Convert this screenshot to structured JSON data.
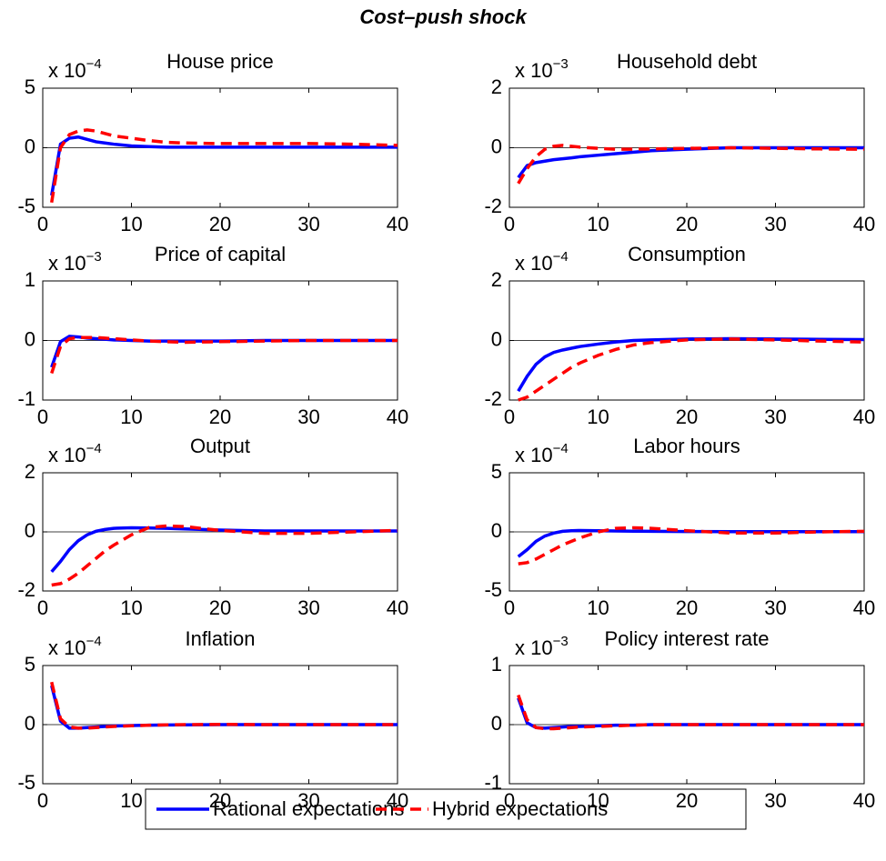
{
  "title": "Cost–push shock",
  "chart_data": [
    {
      "type": "line",
      "title": "House price",
      "y_scale": "x 10",
      "y_exponent": "−4",
      "x": [
        1,
        2,
        3,
        4,
        5,
        6,
        7,
        8,
        10,
        12,
        14,
        16,
        20,
        25,
        30,
        35,
        40
      ],
      "xlim": [
        0,
        40
      ],
      "xticks": [
        0,
        10,
        20,
        30,
        40
      ],
      "ylim": [
        -5,
        5
      ],
      "yticks": [
        -5,
        0,
        5
      ],
      "series": [
        {
          "name": "Rational expectations",
          "color": "#0000ff",
          "line_style": "solid",
          "values": [
            -4,
            0.3,
            0.8,
            0.9,
            0.7,
            0.5,
            0.4,
            0.3,
            0.15,
            0.1,
            0.05,
            0.05,
            0.05,
            0.05,
            0.05,
            0.05,
            0.05
          ]
        },
        {
          "name": "Hybrid expectations",
          "color": "#ff0000",
          "line_style": "dashed",
          "values": [
            -4.6,
            0.0,
            1.1,
            1.4,
            1.5,
            1.4,
            1.2,
            1.0,
            0.8,
            0.6,
            0.45,
            0.4,
            0.35,
            0.35,
            0.35,
            0.3,
            0.2
          ]
        }
      ]
    },
    {
      "type": "line",
      "title": "Household debt",
      "y_scale": "x 10",
      "y_exponent": "−3",
      "x": [
        1,
        2,
        3,
        4,
        5,
        6,
        7,
        8,
        10,
        12,
        14,
        16,
        20,
        25,
        30,
        35,
        40
      ],
      "xlim": [
        0,
        40
      ],
      "xticks": [
        0,
        10,
        20,
        30,
        40
      ],
      "ylim": [
        -2,
        2
      ],
      "yticks": [
        -2,
        0,
        2
      ],
      "series": [
        {
          "name": "Rational expectations",
          "color": "#0000ff",
          "line_style": "solid",
          "values": [
            -1.0,
            -0.6,
            -0.5,
            -0.45,
            -0.4,
            -0.37,
            -0.34,
            -0.3,
            -0.25,
            -0.2,
            -0.15,
            -0.1,
            -0.05,
            0,
            0,
            0,
            0
          ]
        },
        {
          "name": "Hybrid expectations",
          "color": "#ff0000",
          "line_style": "dashed",
          "values": [
            -1.2,
            -0.7,
            -0.3,
            -0.05,
            0.05,
            0.08,
            0.05,
            0.02,
            -0.02,
            -0.05,
            -0.05,
            -0.04,
            -0.02,
            0,
            -0.02,
            -0.04,
            -0.05
          ]
        }
      ]
    },
    {
      "type": "line",
      "title": "Price of capital",
      "y_scale": "x 10",
      "y_exponent": "−3",
      "x": [
        1,
        2,
        3,
        4,
        5,
        6,
        7,
        8,
        10,
        12,
        14,
        16,
        20,
        25,
        30,
        35,
        40
      ],
      "xlim": [
        0,
        40
      ],
      "xticks": [
        0,
        10,
        20,
        30,
        40
      ],
      "ylim": [
        -1,
        1
      ],
      "yticks": [
        -1,
        0,
        1
      ],
      "series": [
        {
          "name": "Rational expectations",
          "color": "#0000ff",
          "line_style": "solid",
          "values": [
            -0.45,
            -0.02,
            0.07,
            0.06,
            0.04,
            0.03,
            0.02,
            0.01,
            0,
            -0.01,
            -0.01,
            -0.01,
            -0.01,
            0,
            0,
            0,
            0
          ]
        },
        {
          "name": "Hybrid expectations",
          "color": "#ff0000",
          "line_style": "dashed",
          "values": [
            -0.55,
            -0.1,
            0.03,
            0.05,
            0.05,
            0.05,
            0.04,
            0.03,
            0.01,
            -0.01,
            -0.02,
            -0.03,
            -0.02,
            -0.01,
            0,
            0,
            0
          ]
        }
      ]
    },
    {
      "type": "line",
      "title": "Consumption",
      "y_scale": "x 10",
      "y_exponent": "−4",
      "x": [
        1,
        2,
        3,
        4,
        5,
        6,
        7,
        8,
        10,
        12,
        14,
        16,
        20,
        25,
        30,
        35,
        40
      ],
      "xlim": [
        0,
        40
      ],
      "xticks": [
        0,
        10,
        20,
        30,
        40
      ],
      "ylim": [
        -2,
        2
      ],
      "yticks": [
        -2,
        0,
        2
      ],
      "series": [
        {
          "name": "Rational expectations",
          "color": "#0000ff",
          "line_style": "solid",
          "values": [
            -1.7,
            -1.2,
            -0.8,
            -0.55,
            -0.4,
            -0.32,
            -0.26,
            -0.2,
            -0.12,
            -0.05,
            0,
            0.02,
            0.05,
            0.06,
            0.05,
            0.04,
            0.03
          ]
        },
        {
          "name": "Hybrid expectations",
          "color": "#ff0000",
          "line_style": "dashed",
          "values": [
            -2.0,
            -1.9,
            -1.7,
            -1.5,
            -1.3,
            -1.1,
            -0.9,
            -0.75,
            -0.5,
            -0.3,
            -0.15,
            -0.07,
            0.02,
            0.05,
            0.02,
            -0.02,
            -0.05
          ]
        }
      ]
    },
    {
      "type": "line",
      "title": "Output",
      "y_scale": "x 10",
      "y_exponent": "−4",
      "x": [
        1,
        2,
        3,
        4,
        5,
        6,
        7,
        8,
        10,
        12,
        14,
        16,
        20,
        25,
        30,
        35,
        40
      ],
      "xlim": [
        0,
        40
      ],
      "xticks": [
        0,
        10,
        20,
        30,
        40
      ],
      "ylim": [
        -2,
        2
      ],
      "yticks": [
        -2,
        0,
        2
      ],
      "series": [
        {
          "name": "Rational expectations",
          "color": "#0000ff",
          "line_style": "solid",
          "values": [
            -1.35,
            -1.0,
            -0.6,
            -0.3,
            -0.1,
            0.02,
            0.08,
            0.12,
            0.14,
            0.13,
            0.12,
            0.1,
            0.06,
            0.03,
            0.03,
            0.03,
            0.03
          ]
        },
        {
          "name": "Hybrid expectations",
          "color": "#ff0000",
          "line_style": "dashed",
          "values": [
            -1.8,
            -1.75,
            -1.6,
            -1.4,
            -1.15,
            -0.9,
            -0.65,
            -0.45,
            -0.1,
            0.15,
            0.2,
            0.18,
            0.05,
            -0.05,
            -0.05,
            0,
            0.05
          ]
        }
      ]
    },
    {
      "type": "line",
      "title": "Labor hours",
      "y_scale": "x 10",
      "y_exponent": "−4",
      "x": [
        1,
        2,
        3,
        4,
        5,
        6,
        7,
        8,
        10,
        12,
        14,
        16,
        20,
        25,
        30,
        35,
        40
      ],
      "xlim": [
        0,
        40
      ],
      "xticks": [
        0,
        10,
        20,
        30,
        40
      ],
      "ylim": [
        -5,
        5
      ],
      "yticks": [
        -5,
        0,
        5
      ],
      "series": [
        {
          "name": "Rational expectations",
          "color": "#0000ff",
          "line_style": "solid",
          "values": [
            -2.1,
            -1.5,
            -0.8,
            -0.35,
            -0.1,
            0.05,
            0.1,
            0.12,
            0.1,
            0.08,
            0.06,
            0.05,
            0.03,
            0.02,
            0.02,
            0.02,
            0.02
          ]
        },
        {
          "name": "Hybrid expectations",
          "color": "#ff0000",
          "line_style": "dashed",
          "values": [
            -2.7,
            -2.6,
            -2.3,
            -1.9,
            -1.5,
            -1.1,
            -0.8,
            -0.5,
            0,
            0.3,
            0.35,
            0.3,
            0.1,
            -0.1,
            -0.1,
            0,
            0.05
          ]
        }
      ]
    },
    {
      "type": "line",
      "title": "Inflation",
      "y_scale": "x 10",
      "y_exponent": "−4",
      "x": [
        1,
        2,
        3,
        4,
        5,
        6,
        7,
        8,
        10,
        12,
        14,
        16,
        20,
        25,
        30,
        35,
        40
      ],
      "xlim": [
        0,
        40
      ],
      "xticks": [
        0,
        10,
        20,
        30,
        40
      ],
      "ylim": [
        -5,
        5
      ],
      "yticks": [
        -5,
        0,
        5
      ],
      "series": [
        {
          "name": "Rational expectations",
          "color": "#0000ff",
          "line_style": "solid",
          "values": [
            3.3,
            0.3,
            -0.3,
            -0.3,
            -0.25,
            -0.2,
            -0.15,
            -0.12,
            -0.08,
            -0.05,
            -0.03,
            -0.02,
            0,
            0,
            0,
            0,
            0
          ]
        },
        {
          "name": "Hybrid expectations",
          "color": "#ff0000",
          "line_style": "dashed",
          "values": [
            3.6,
            0.5,
            -0.2,
            -0.3,
            -0.3,
            -0.25,
            -0.2,
            -0.15,
            -0.1,
            -0.05,
            -0.02,
            0,
            0.02,
            0,
            0,
            0,
            0
          ]
        }
      ]
    },
    {
      "type": "line",
      "title": "Policy interest rate",
      "y_scale": "x 10",
      "y_exponent": "−3",
      "x": [
        1,
        2,
        3,
        4,
        5,
        6,
        7,
        8,
        10,
        12,
        14,
        16,
        20,
        25,
        30,
        35,
        40
      ],
      "xlim": [
        0,
        40
      ],
      "xticks": [
        0,
        10,
        20,
        30,
        40
      ],
      "ylim": [
        -1,
        1
      ],
      "yticks": [
        -1,
        0,
        1
      ],
      "series": [
        {
          "name": "Rational expectations",
          "color": "#0000ff",
          "line_style": "solid",
          "values": [
            0.45,
            0.03,
            -0.05,
            -0.06,
            -0.05,
            -0.04,
            -0.03,
            -0.03,
            -0.02,
            -0.01,
            -0.01,
            0,
            0,
            0,
            0,
            0,
            0
          ]
        },
        {
          "name": "Hybrid expectations",
          "color": "#ff0000",
          "line_style": "dashed",
          "values": [
            0.5,
            0.08,
            -0.05,
            -0.07,
            -0.07,
            -0.06,
            -0.05,
            -0.04,
            -0.03,
            -0.02,
            -0.01,
            0,
            0,
            0,
            0,
            0,
            0
          ]
        }
      ]
    }
  ]
}
